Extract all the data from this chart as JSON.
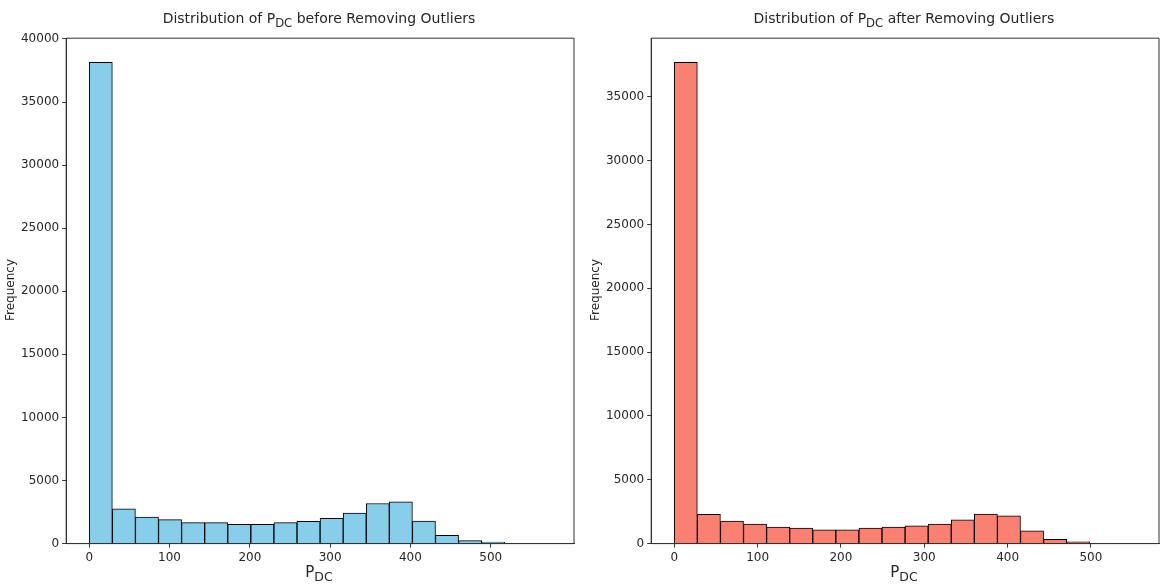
{
  "chart_data": [
    {
      "type": "histogram",
      "title": "Distribution of P$_{DC}$ before Removing Outliers",
      "xlabel": "P$_{DC}$",
      "ylabel": "Frequency",
      "color": "#87ceeb",
      "bins": [
        0,
        28.75,
        57.5,
        86.25,
        115,
        143.75,
        172.5,
        201.25,
        230,
        258.75,
        287.5,
        316.25,
        345,
        373.75,
        402.5,
        431.25,
        460,
        488.75,
        517.5,
        546.25,
        575
      ],
      "values": [
        38150,
        2760,
        2100,
        1900,
        1660,
        1660,
        1530,
        1530,
        1660,
        1760,
        2000,
        2420,
        3180,
        3320,
        1790,
        660,
        240,
        130,
        0,
        0
      ],
      "xlim": [
        -28.75,
        603.75
      ],
      "xticks": [
        0,
        100,
        200,
        300,
        400,
        500
      ],
      "ylim": [
        0,
        40060
      ],
      "yticks": [
        0,
        5000,
        10000,
        15000,
        20000,
        25000,
        30000,
        35000,
        40000
      ]
    },
    {
      "type": "histogram",
      "title": "Distribution of P$_{DC}$ after Removing Outliers",
      "xlabel": "P$_{DC}$",
      "ylabel": "Frequency",
      "color": "#fa8072",
      "bins": [
        0,
        27.7,
        55.4,
        83.1,
        110.8,
        138.5,
        166.2,
        193.9,
        221.6,
        249.3,
        277,
        304.7,
        332.4,
        360.1,
        387.8,
        415.5,
        443.2,
        470.9,
        498.6,
        526.3,
        554
      ],
      "values": [
        37700,
        2290,
        1760,
        1530,
        1290,
        1210,
        1080,
        1080,
        1210,
        1290,
        1400,
        1530,
        1870,
        2320,
        2180,
        1000,
        340,
        130,
        0,
        0
      ],
      "xlim": [
        -27.7,
        581.7
      ],
      "xticks": [
        0,
        100,
        200,
        300,
        400,
        500
      ],
      "ylim": [
        0,
        39585
      ],
      "yticks": [
        0,
        5000,
        10000,
        15000,
        20000,
        25000,
        30000,
        35000
      ]
    }
  ]
}
